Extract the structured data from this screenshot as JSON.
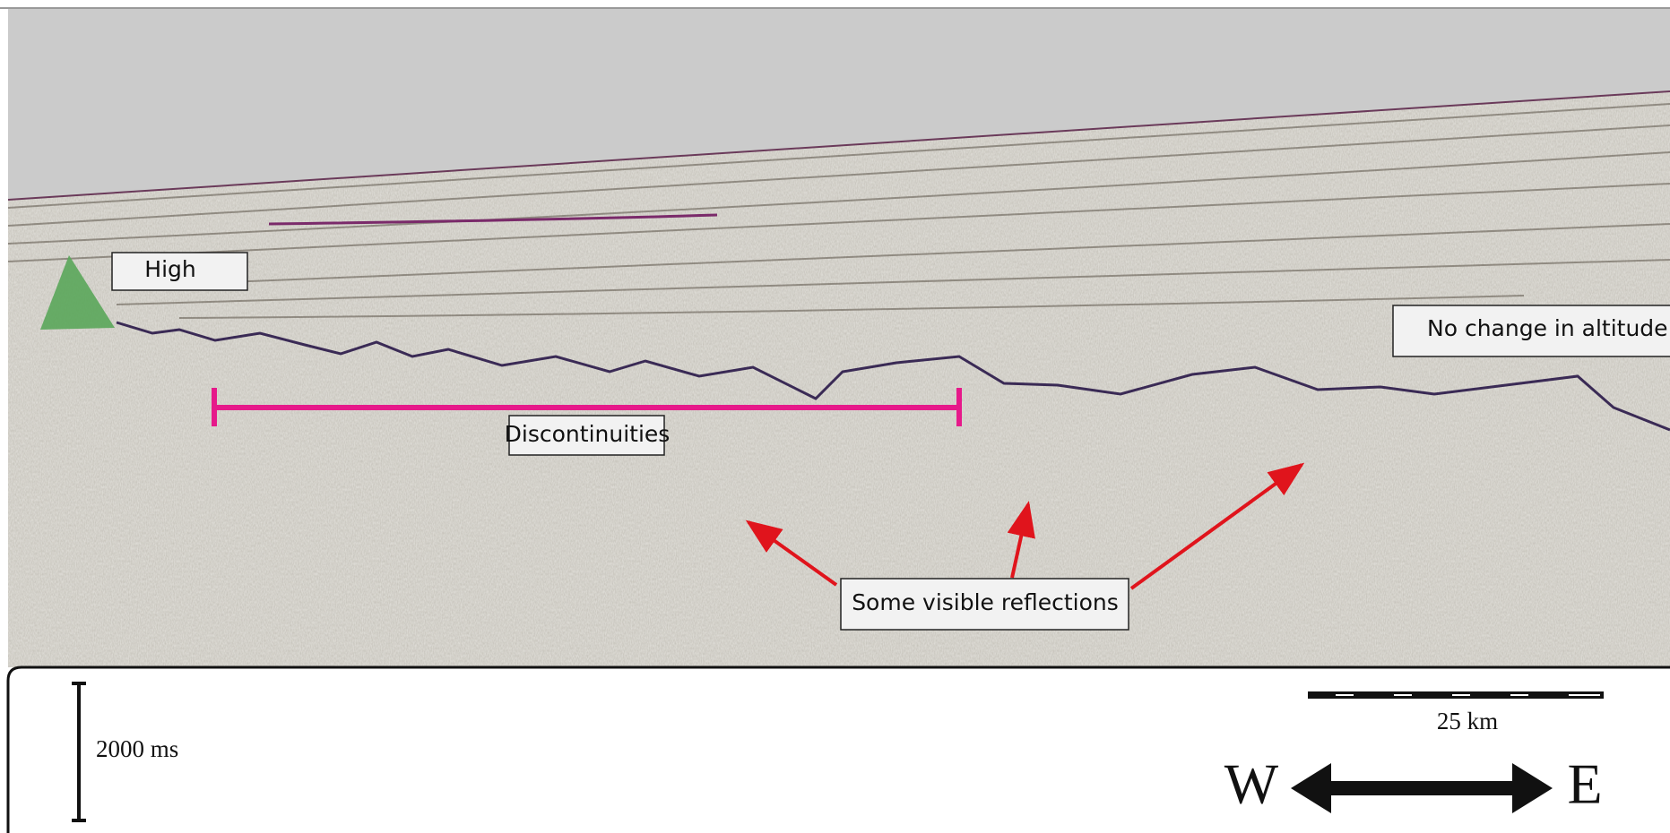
{
  "labels": {
    "high": "High",
    "no_change": "No change in altitude",
    "discontinuities": "Discontinuities",
    "reflections": "Some visible reflections"
  },
  "scale": {
    "time": "2000 ms",
    "distance": "25 km"
  },
  "compass": {
    "west": "W",
    "east": "E"
  }
}
